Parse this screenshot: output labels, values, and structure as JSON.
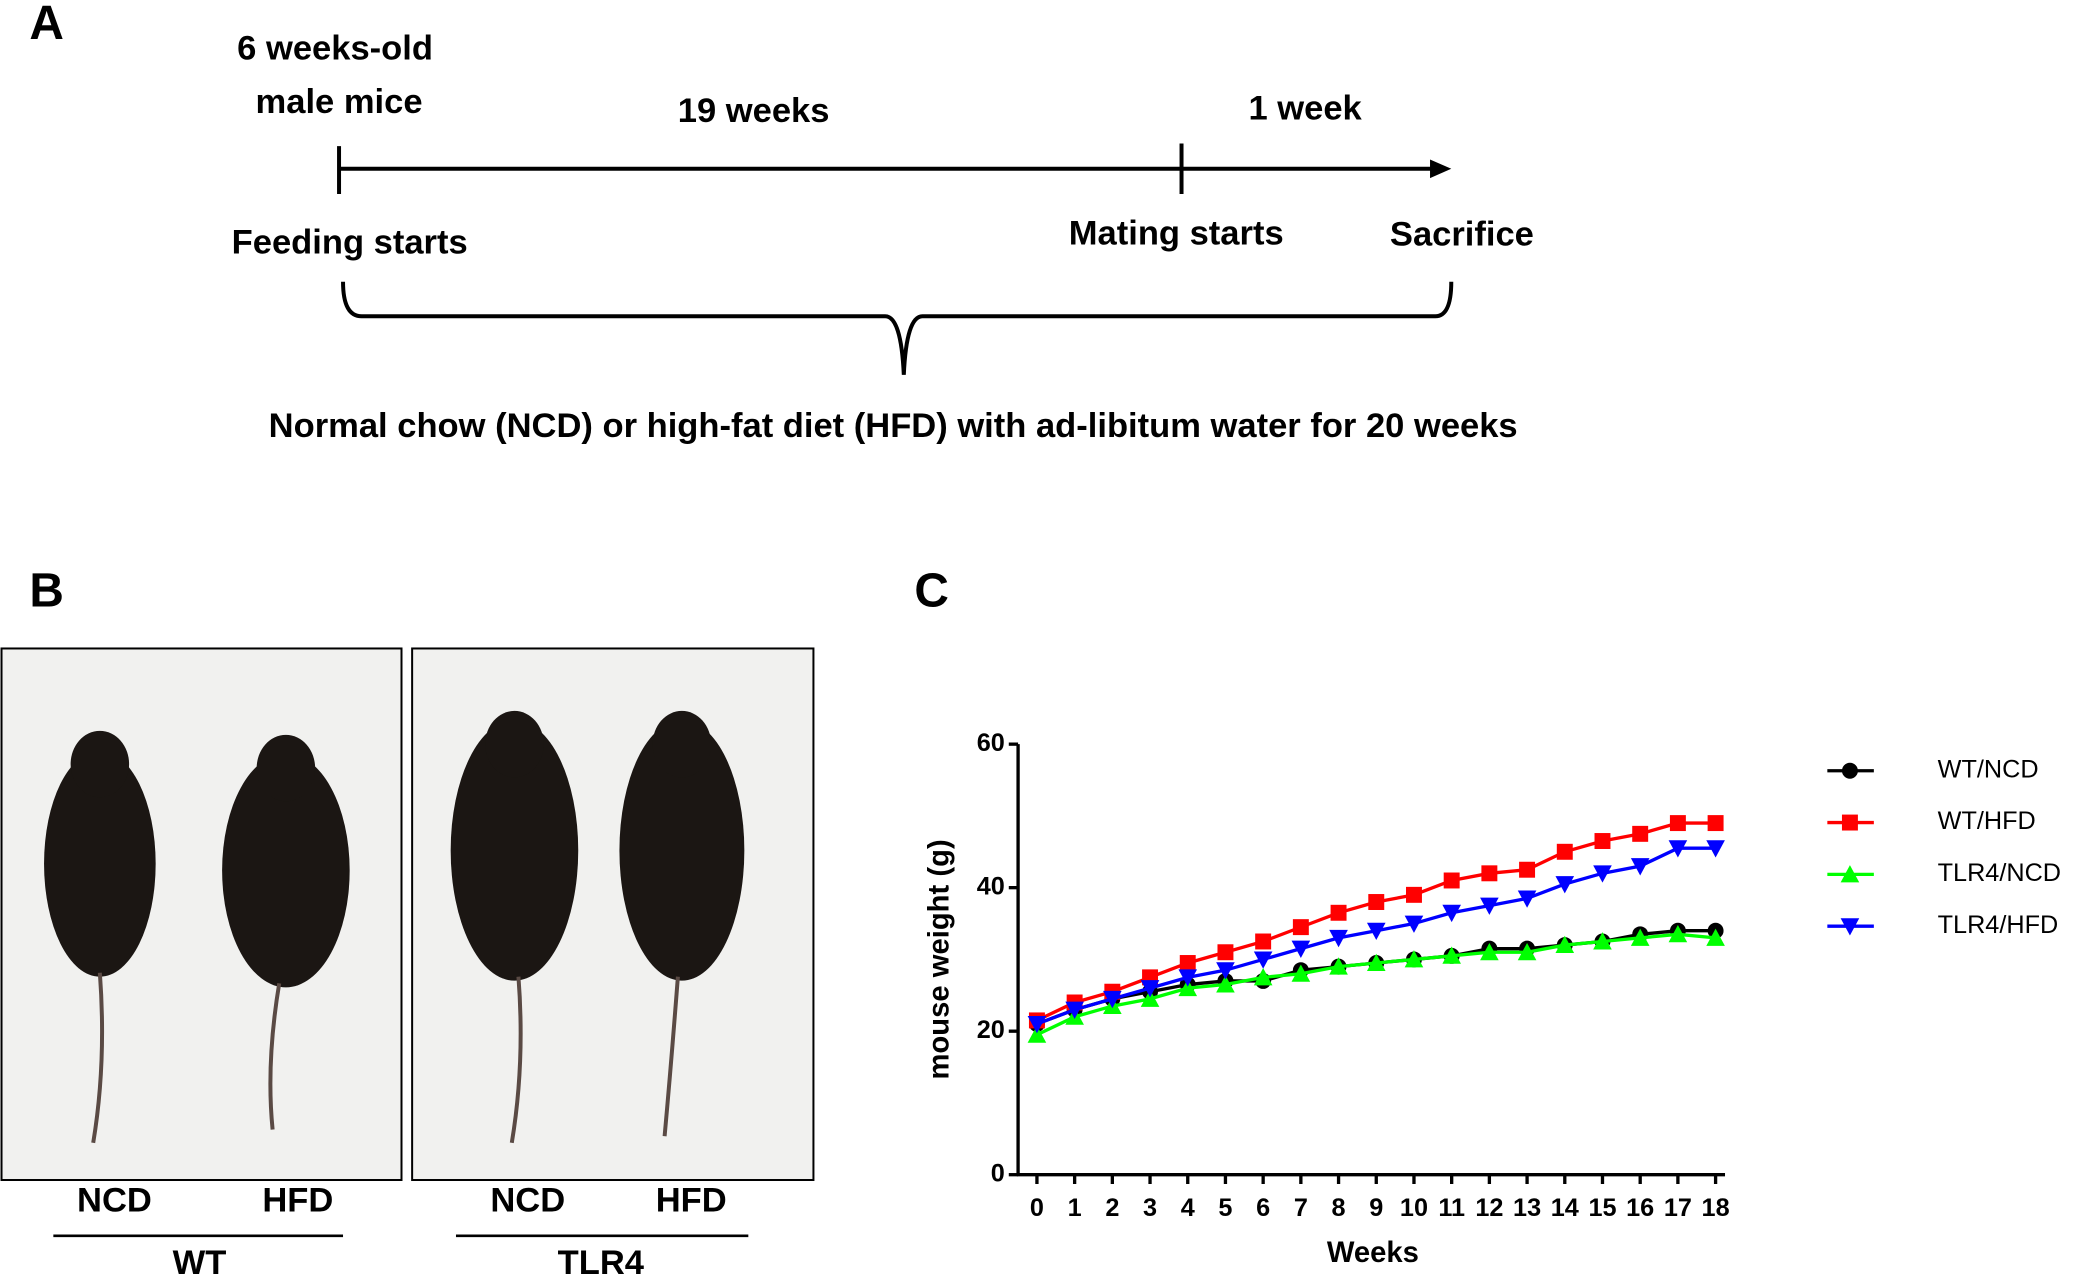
{
  "panel_a": {
    "label": "A",
    "start_line1": "6 weeks-old",
    "start_line2": "male mice",
    "period1": "19 weeks",
    "period2": "1 week",
    "event1": "Feeding starts",
    "event2": "Mating starts",
    "event3": "Sacrifice",
    "note": "Normal chow (NCD) or high-fat diet (HFD) with ad-libitum water for 20 weeks"
  },
  "panel_b": {
    "label": "B",
    "groups": [
      {
        "name": "WT",
        "diets": [
          "NCD",
          "HFD"
        ]
      },
      {
        "name": "TLR4",
        "diets": [
          "NCD",
          "HFD"
        ]
      }
    ]
  },
  "chart_data": {
    "type": "line",
    "panel_label": "C",
    "xlabel": "Weeks",
    "ylabel": "mouse weight (g)",
    "x": [
      0,
      1,
      2,
      3,
      4,
      5,
      6,
      7,
      8,
      9,
      10,
      11,
      12,
      13,
      14,
      15,
      16,
      17,
      18
    ],
    "xlim": [
      -0.5,
      18.25
    ],
    "xticks": [
      0,
      1,
      2,
      3,
      4,
      5,
      6,
      7,
      8,
      9,
      10,
      11,
      12,
      13,
      14,
      15,
      16,
      17,
      18
    ],
    "ylim": [
      0,
      60
    ],
    "yticks": [
      0,
      20,
      40,
      60
    ],
    "series": [
      {
        "name": "WT/NCD",
        "color": "#000000",
        "marker": "circle",
        "values": [
          21,
          23,
          24.5,
          25.5,
          26.5,
          27,
          27,
          28.5,
          29,
          29.5,
          30,
          30.5,
          31.5,
          31.5,
          32,
          32.5,
          33.5,
          34,
          34
        ]
      },
      {
        "name": "WT/HFD",
        "color": "#ff0000",
        "marker": "square",
        "values": [
          21.5,
          24,
          25.5,
          27.5,
          29.5,
          31,
          32.5,
          34.5,
          36.5,
          38,
          39,
          41,
          42,
          42.5,
          45,
          46.5,
          47.5,
          49,
          49
        ]
      },
      {
        "name": "TLR4/NCD",
        "color": "#00ff00",
        "marker": "triangle-up",
        "values": [
          19.5,
          22,
          23.5,
          24.5,
          26,
          26.5,
          27.5,
          28,
          29,
          29.5,
          30,
          30.5,
          31,
          31,
          32,
          32.5,
          33,
          33.5,
          33
        ]
      },
      {
        "name": "TLR4/HFD",
        "color": "#0000ff",
        "marker": "triangle-down",
        "values": [
          21,
          23,
          24.5,
          26,
          27.5,
          28.5,
          30,
          31.5,
          33,
          34,
          35,
          36.5,
          37.5,
          38.5,
          40.5,
          42,
          43,
          45.5,
          45.5
        ]
      }
    ]
  }
}
